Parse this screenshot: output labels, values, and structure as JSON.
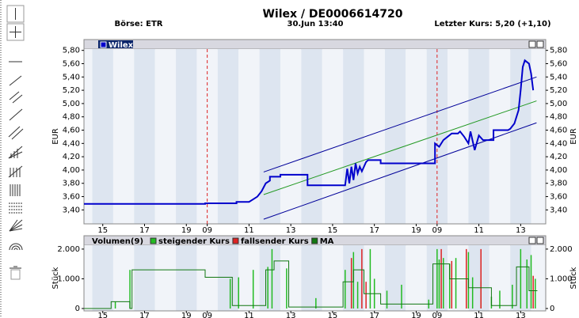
{
  "header": {
    "title": "Wilex  /  DE0006614720",
    "exchange": "Börse: ETR",
    "time": "30.Jun 13:40",
    "last_price": "Letzter Kurs: 5,20 (+1,10)"
  },
  "chart_data": [
    {
      "type": "line",
      "ylabel": "EUR",
      "xlim": [
        -0.9,
        21.2
      ],
      "ylim": [
        3.19,
        5.82
      ],
      "xticks": [
        {
          "value": 0,
          "label": "15"
        },
        {
          "value": 2,
          "label": "17"
        },
        {
          "value": 4,
          "label": "19"
        },
        {
          "value": 5,
          "label": "09"
        },
        {
          "value": 7,
          "label": "11"
        },
        {
          "value": 9,
          "label": "13"
        },
        {
          "value": 11,
          "label": "15"
        },
        {
          "value": 13,
          "label": "17"
        },
        {
          "value": 15,
          "label": "19"
        },
        {
          "value": 16,
          "label": "09"
        },
        {
          "value": 18,
          "label": "11"
        },
        {
          "value": 20,
          "label": "13"
        }
      ],
      "yticks": [
        {
          "value": 3.4,
          "label": "3,40"
        },
        {
          "value": 3.6,
          "label": "3,60"
        },
        {
          "value": 3.8,
          "label": "3,80"
        },
        {
          "value": 4.0,
          "label": "4,00"
        },
        {
          "value": 4.2,
          "label": "4,20"
        },
        {
          "value": 4.4,
          "label": "4,40"
        },
        {
          "value": 4.6,
          "label": "4,60"
        },
        {
          "value": 4.8,
          "label": "4,80"
        },
        {
          "value": 5.0,
          "label": "5,00"
        },
        {
          "value": 5.2,
          "label": "5,20"
        },
        {
          "value": 5.4,
          "label": "5,40"
        },
        {
          "value": 5.6,
          "label": "5,60"
        },
        {
          "value": 5.8,
          "label": "5,80"
        }
      ],
      "day_breaks": [
        5,
        16
      ],
      "series": [
        {
          "name": "Wilex",
          "color": "#0000cc",
          "x": [
            -0.9,
            4.9,
            4.9,
            6.4,
            6.4,
            7.0,
            7.2,
            7.4,
            7.6,
            7.8,
            8.0,
            8.0,
            8.5,
            8.5,
            9.8,
            9.8,
            11.6,
            11.7,
            11.8,
            11.9,
            12.0,
            12.1,
            12.2,
            12.3,
            12.4,
            12.6,
            12.7,
            13.3,
            13.3,
            15.9,
            15.9,
            16.1,
            16.3,
            16.5,
            16.7,
            17.0,
            17.1,
            17.3,
            17.5,
            17.6,
            17.8,
            18.0,
            18.2,
            18.7,
            18.7,
            19.4,
            19.5,
            19.7,
            19.9,
            20.0,
            20.1,
            20.2,
            20.4,
            20.5,
            20.6
          ],
          "values": [
            3.49,
            3.49,
            3.5,
            3.5,
            3.52,
            3.52,
            3.56,
            3.6,
            3.68,
            3.8,
            3.84,
            3.9,
            3.9,
            3.93,
            3.93,
            3.77,
            3.77,
            4.02,
            3.8,
            4.05,
            3.85,
            4.1,
            3.95,
            4.05,
            3.98,
            4.12,
            4.15,
            4.15,
            4.1,
            4.1,
            4.4,
            4.35,
            4.45,
            4.5,
            4.55,
            4.55,
            4.58,
            4.5,
            4.4,
            4.58,
            4.3,
            4.52,
            4.45,
            4.45,
            4.6,
            4.6,
            4.62,
            4.7,
            4.9,
            5.2,
            5.55,
            5.65,
            5.6,
            5.45,
            5.2
          ]
        },
        {
          "color": "#000099",
          "x": [
            7.7,
            20.76
          ],
          "values": [
            3.97,
            5.4
          ]
        },
        {
          "color": "#229922",
          "x": [
            7.7,
            20.76
          ],
          "values": [
            3.63,
            5.04
          ]
        },
        {
          "color": "#000099",
          "x": [
            7.7,
            20.76
          ],
          "values": [
            3.26,
            4.71
          ]
        }
      ]
    },
    {
      "type": "bar",
      "title": "Volumen(9)",
      "ylabel": "Stück",
      "xlim": [
        -0.9,
        21.2
      ],
      "ylim": [
        -80,
        2130
      ],
      "xticks": [
        {
          "value": 0,
          "label": "15"
        },
        {
          "value": 2,
          "label": "17"
        },
        {
          "value": 4,
          "label": "19"
        },
        {
          "value": 5,
          "label": "09"
        },
        {
          "value": 7,
          "label": "11"
        },
        {
          "value": 9,
          "label": "13"
        },
        {
          "value": 11,
          "label": "15"
        },
        {
          "value": 13,
          "label": "17"
        },
        {
          "value": 15,
          "label": "19"
        },
        {
          "value": 16,
          "label": "09"
        },
        {
          "value": 18,
          "label": "11"
        },
        {
          "value": 20,
          "label": "13"
        }
      ],
      "yticks": [
        0,
        {
          "value": 1000,
          "label": "1.000"
        },
        {
          "value": 2000,
          "label": "2.000"
        }
      ],
      "series": [
        {
          "name": "steigender Kurs",
          "color": "#22bb22",
          "x": [
            0.6,
            1.3,
            6.1,
            6.5,
            7.2,
            7.9,
            8.1,
            8.8,
            10.2,
            11.6,
            12.0,
            12.2,
            12.8,
            13.0,
            13.6,
            14.3,
            15.6,
            16.0,
            16.1,
            16.3,
            16.6,
            16.9,
            17.5,
            17.7,
            18.1,
            18.6,
            19.0,
            19.6,
            20.0,
            20.3,
            20.5,
            20.7
          ],
          "values": [
            230,
            1300,
            1000,
            1050,
            1300,
            1400,
            2000,
            1350,
            350,
            1300,
            1900,
            900,
            2000,
            1000,
            600,
            800,
            300,
            2000,
            1650,
            1700,
            1500,
            1700,
            1900,
            1050,
            900,
            400,
            600,
            800,
            2000,
            1650,
            1800,
            1000
          ]
        },
        {
          "name": "fallsender Kurs",
          "color": "#dd2222",
          "x": [
            11.9,
            12.4,
            12.6,
            16.2,
            16.7,
            17.4,
            18.1,
            20.6
          ],
          "values": [
            1700,
            2000,
            900,
            2000,
            1600,
            2000,
            2000,
            1100
          ]
        },
        {
          "name": "MA",
          "color": "#117711",
          "type": "line",
          "x": [
            -0.9,
            0.4,
            0.4,
            1.3,
            1.3,
            1.4,
            1.4,
            4.9,
            4.9,
            6.2,
            6.2,
            7.8,
            7.8,
            8.2,
            8.2,
            8.9,
            8.9,
            11.5,
            11.5,
            12.0,
            12.0,
            12.5,
            12.5,
            13.3,
            13.3,
            15.8,
            15.8,
            16.6,
            16.6,
            17.5,
            17.5,
            18.6,
            18.6,
            19.8,
            19.8,
            20.4,
            20.4,
            20.8
          ],
          "values": [
            0,
            0,
            230,
            230,
            0,
            0,
            1300,
            1300,
            1050,
            1050,
            100,
            100,
            1300,
            1300,
            1600,
            1600,
            50,
            50,
            900,
            900,
            1300,
            1300,
            500,
            500,
            150,
            150,
            1500,
            1500,
            1000,
            1000,
            700,
            700,
            100,
            100,
            1400,
            1400,
            600,
            600
          ]
        }
      ]
    }
  ]
}
